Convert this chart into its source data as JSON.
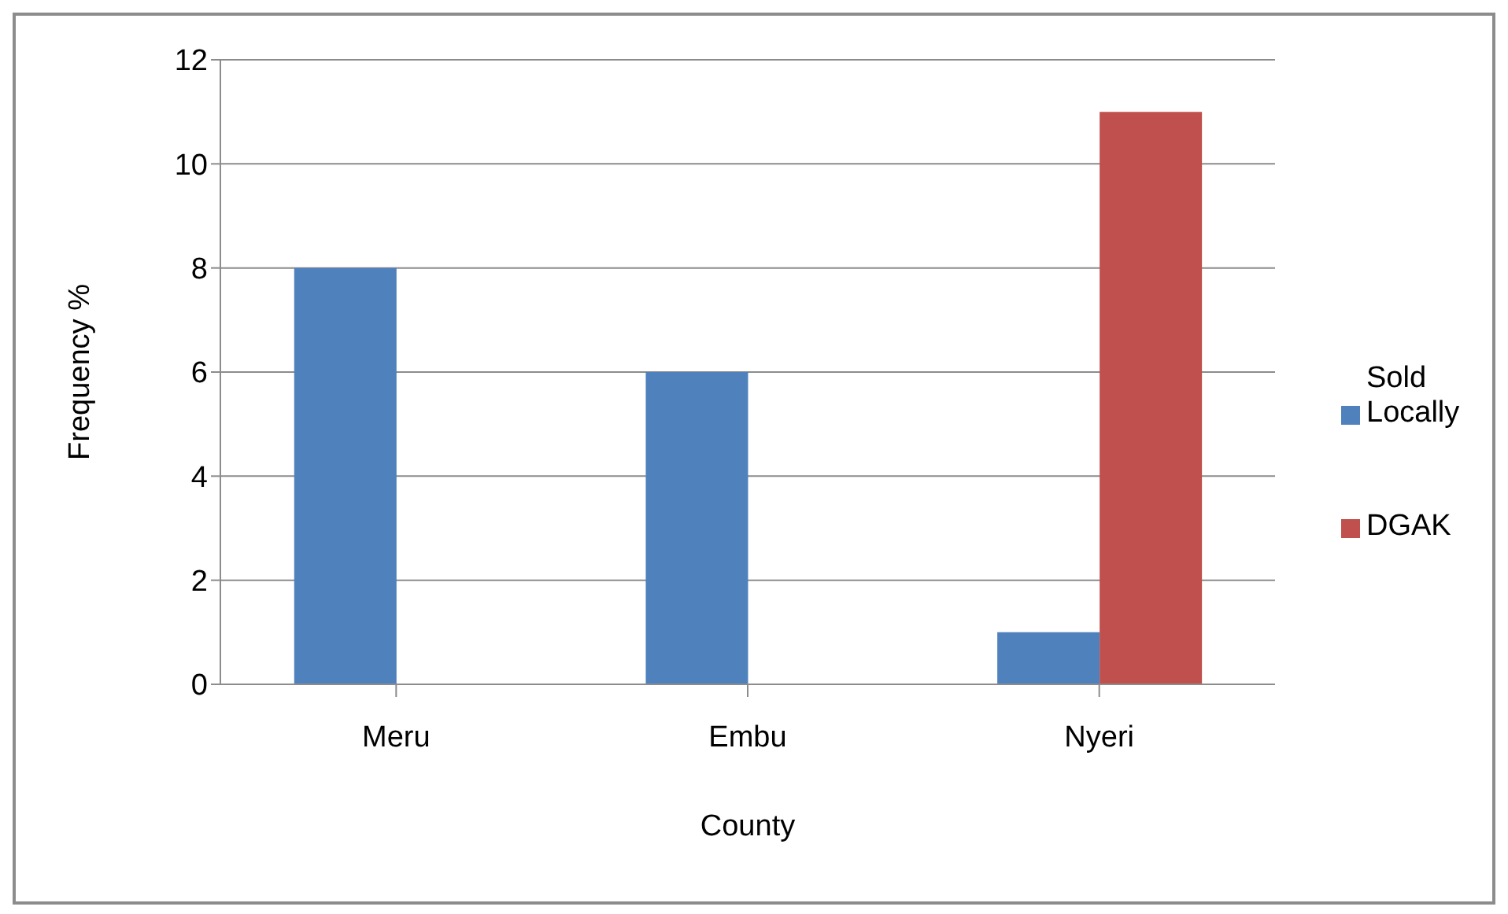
{
  "chart_data": {
    "type": "bar",
    "xlabel": "County",
    "ylabel": "Frequency %",
    "categories": [
      "Meru",
      "Embu",
      "Nyeri"
    ],
    "series": [
      {
        "name": "Sold Locally",
        "color": "#4f81bd",
        "values": [
          8,
          6,
          1
        ]
      },
      {
        "name": "DGAK",
        "color": "#c0504d",
        "values": [
          0,
          0,
          11
        ]
      }
    ],
    "ylim": [
      0,
      12
    ],
    "yticks": [
      0,
      2,
      4,
      6,
      8,
      10,
      12
    ],
    "grid": "y",
    "legend": "right"
  }
}
